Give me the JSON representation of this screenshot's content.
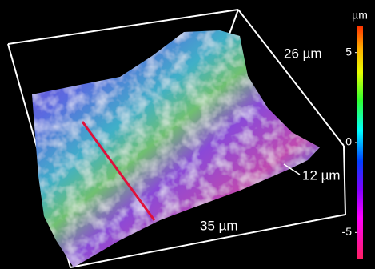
{
  "labels": {
    "depth": "26 µm",
    "height": "12 µm",
    "width": "35 µm"
  },
  "colorbar": {
    "title": "µm",
    "lim": [
      -6.5,
      6.5
    ],
    "ticks": [
      5,
      0,
      -5
    ]
  }
}
